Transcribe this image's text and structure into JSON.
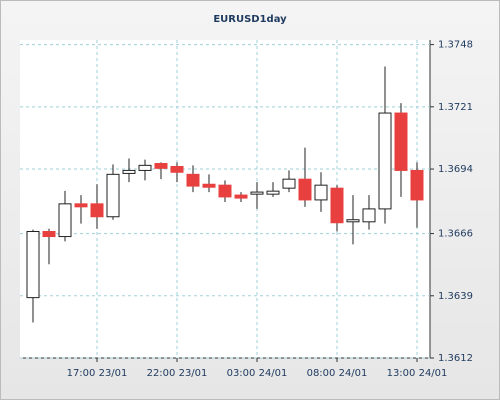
{
  "chart_data": {
    "type": "candlestick",
    "title": "EURUSD1day",
    "categories": [
      null,
      null,
      null,
      null,
      "17:00 23/01",
      null,
      null,
      null,
      null,
      "22:00 23/01",
      null,
      null,
      null,
      null,
      "03:00 24/01",
      null,
      null,
      null,
      null,
      "08:00 24/01",
      null,
      null,
      null,
      null,
      "13:00 24/01"
    ],
    "open": [
      1.36382,
      1.36669,
      1.36647,
      1.36789,
      1.36789,
      1.36733,
      1.36921,
      1.36934,
      1.36964,
      1.36951,
      1.36917,
      1.36874,
      1.3687,
      1.36827,
      1.36831,
      1.36831,
      1.36857,
      1.36896,
      1.36806,
      1.36857,
      1.36711,
      1.36711,
      1.36767,
      1.37183,
      1.36934
    ],
    "high": [
      1.36677,
      1.36681,
      1.36845,
      1.36827,
      1.36874,
      1.3696,
      1.36986,
      1.36981,
      1.36969,
      1.36969,
      1.36956,
      1.36917,
      1.36891,
      1.3684,
      1.36883,
      1.36883,
      1.36934,
      1.37033,
      1.36926,
      1.3687,
      1.36827,
      1.36827,
      1.37385,
      1.37226,
      1.36969
    ],
    "low": [
      1.36274,
      1.36527,
      1.36626,
      1.36703,
      1.36681,
      1.3672,
      1.36883,
      1.36891,
      1.36896,
      1.36883,
      1.3684,
      1.3684,
      1.36797,
      1.36797,
      1.36767,
      1.36819,
      1.3684,
      1.36776,
      1.36754,
      1.36669,
      1.36613,
      1.36677,
      1.36703,
      1.36819,
      1.36686
    ],
    "close": [
      1.36669,
      1.36647,
      1.36789,
      1.36776,
      1.36733,
      1.36917,
      1.36934,
      1.36956,
      1.36943,
      1.36926,
      1.36866,
      1.36861,
      1.36819,
      1.36814,
      1.3684,
      1.36844,
      1.36896,
      1.36806,
      1.3687,
      1.36707,
      1.3672,
      1.36767,
      1.37183,
      1.36934,
      1.36806
    ],
    "up_color": "#ffffff",
    "down_color": "#e8403f",
    "ylim": [
      1.3612,
      1.375
    ],
    "yticks": [
      1.3612,
      1.3639,
      1.3666,
      1.3694,
      1.3721,
      1.3748
    ],
    "grid": true
  }
}
